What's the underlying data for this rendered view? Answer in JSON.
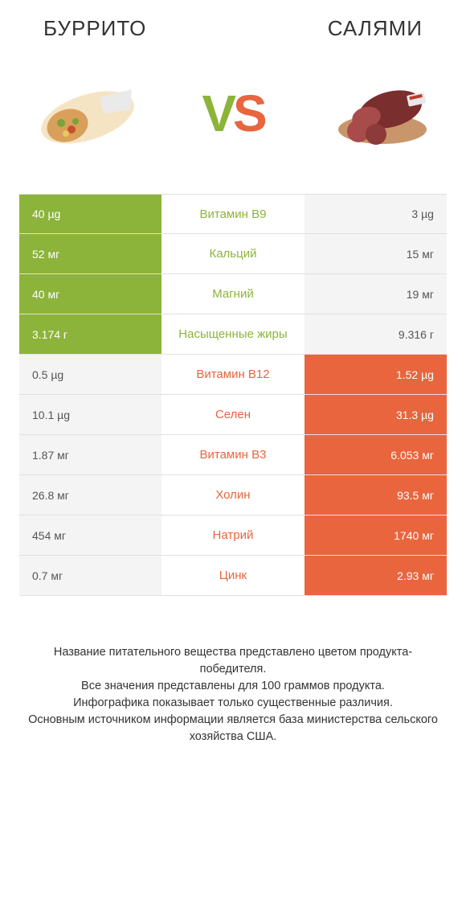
{
  "header": {
    "left_title": "БУРРИТО",
    "right_title": "САЛЯМИ",
    "vs_v": "V",
    "vs_s": "S"
  },
  "colors": {
    "left": "#8cb43a",
    "right": "#e8653e",
    "lose_bg": "#f4f4f4",
    "lose_text": "#555555",
    "border": "#e0e0e0"
  },
  "icons": {
    "left_food": "burrito",
    "right_food": "salami"
  },
  "rows": [
    {
      "left": "40 µg",
      "label": "Витамин B9",
      "right": "3 µg",
      "winner": "left"
    },
    {
      "left": "52 мг",
      "label": "Кальций",
      "right": "15 мг",
      "winner": "left"
    },
    {
      "left": "40 мг",
      "label": "Магний",
      "right": "19 мг",
      "winner": "left"
    },
    {
      "left": "3.174 г",
      "label": "Насыщенные жиры",
      "right": "9.316 г",
      "winner": "left"
    },
    {
      "left": "0.5 µg",
      "label": "Витамин B12",
      "right": "1.52 µg",
      "winner": "right"
    },
    {
      "left": "10.1 µg",
      "label": "Селен",
      "right": "31.3 µg",
      "winner": "right"
    },
    {
      "left": "1.87 мг",
      "label": "Витамин B3",
      "right": "6.053 мг",
      "winner": "right"
    },
    {
      "left": "26.8 мг",
      "label": "Холин",
      "right": "93.5 мг",
      "winner": "right"
    },
    {
      "left": "454 мг",
      "label": "Натрий",
      "right": "1740 мг",
      "winner": "right"
    },
    {
      "left": "0.7 мг",
      "label": "Цинк",
      "right": "2.93 мг",
      "winner": "right"
    }
  ],
  "footnote": "Название питательного вещества представлено цветом продукта-победителя.\nВсе значения представлены для 100 граммов продукта.\nИнфографика показывает только существенные различия.\nОсновным источником информации является база министерства сельского хозяйства США."
}
